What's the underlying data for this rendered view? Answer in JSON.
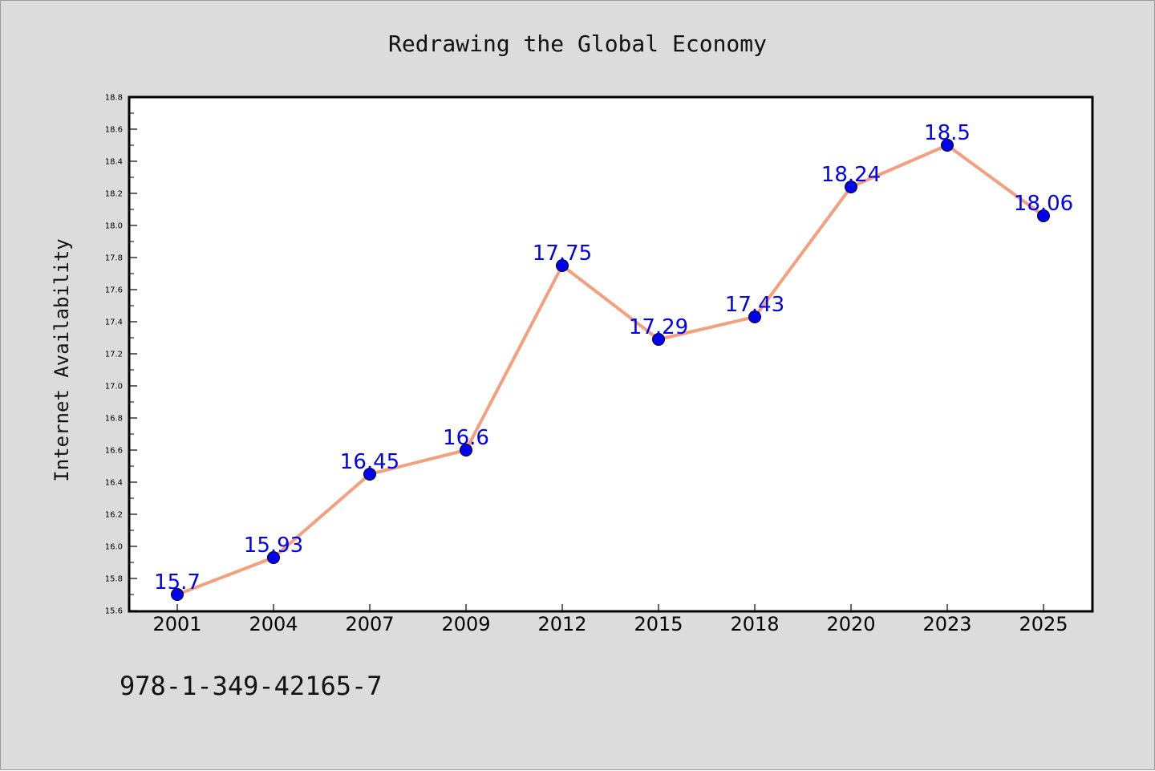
{
  "chart_data": {
    "type": "line",
    "title": "Redrawing the Global Economy",
    "xlabel": "",
    "ylabel": "Internet Availability",
    "categories": [
      "2001",
      "2004",
      "2007",
      "2009",
      "2012",
      "2015",
      "2018",
      "2020",
      "2023",
      "2025"
    ],
    "series": [
      {
        "values": [
          15.7,
          15.93,
          16.45,
          16.6,
          17.75,
          17.29,
          17.43,
          18.24,
          18.5,
          18.06
        ]
      }
    ],
    "data_labels": [
      "15.7",
      "15.93",
      "16.45",
      "16.6",
      "17.75",
      "17.29",
      "17.43",
      "18.24",
      "18.5",
      "18.06"
    ],
    "ylim": [
      15.6,
      18.8
    ],
    "yticks": [
      "15.6",
      "15.8",
      "16.0",
      "16.2",
      "16.4",
      "16.6",
      "16.8",
      "17.0",
      "17.2",
      "17.4",
      "17.6",
      "17.8",
      "18.0",
      "18.2",
      "18.4",
      "18.6",
      "18.8"
    ],
    "grid": false,
    "legend": "none",
    "colors": {
      "line": "#f4a07e",
      "marker": "#0000ee",
      "marker_edge": "#000000",
      "data_label": "#0000ee",
      "plot_bg": "#ffffff",
      "figure_bg": "#dcdcdc"
    }
  },
  "footer": {
    "isbn": "978-1-349-42165-7"
  }
}
